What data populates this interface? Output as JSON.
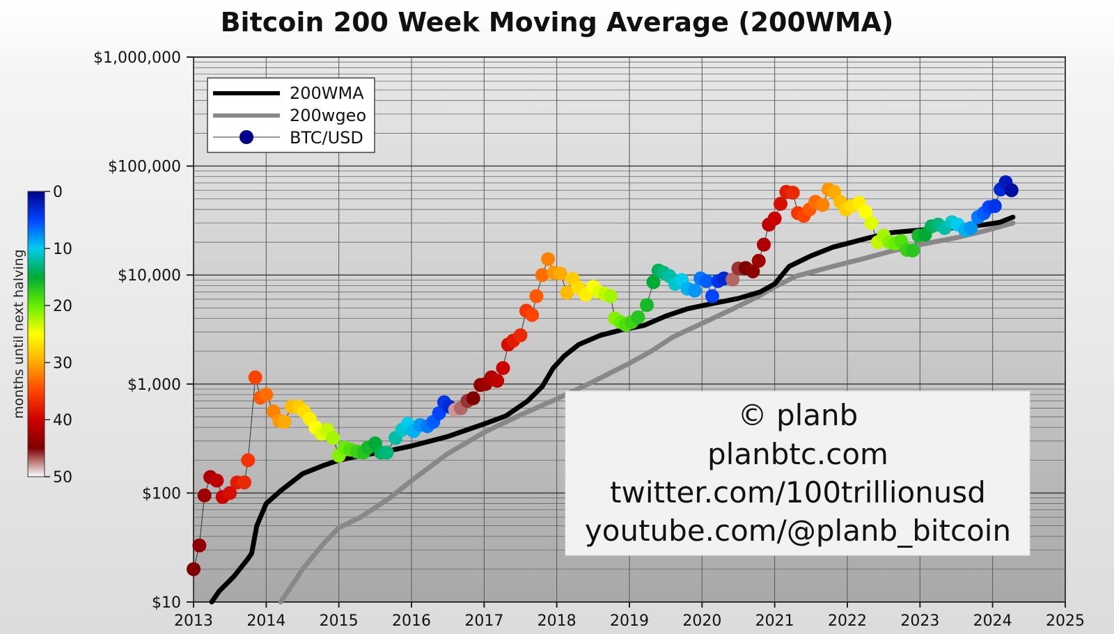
{
  "chart_data": {
    "type": "scatter",
    "title": "Bitcoin 200 Week Moving Average (200WMA)",
    "xlabel": "",
    "ylabel": "",
    "y_scale": "log",
    "xlim": [
      2013,
      2025
    ],
    "ylim": [
      10,
      1000000
    ],
    "x_ticks": [
      "2013",
      "2014",
      "2015",
      "2016",
      "2017",
      "2018",
      "2019",
      "2020",
      "2021",
      "2022",
      "2023",
      "2024",
      "2025"
    ],
    "y_ticks": [
      "$10",
      "$100",
      "$1,000",
      "$10,000",
      "$100,000",
      "$1,000,000"
    ],
    "grid": true,
    "legend": {
      "position": "top-left",
      "entries": [
        {
          "label": "200WMA",
          "color": "#000000",
          "style": "line"
        },
        {
          "label": "200wgeo",
          "color": "#888888",
          "style": "line"
        },
        {
          "label": "BTC/USD",
          "color": "#00008b",
          "style": "marker"
        }
      ]
    },
    "colorbar": {
      "label": "months until next halving",
      "ticks": [
        "0",
        "10",
        "20",
        "30",
        "40",
        "50"
      ],
      "colors": [
        "#00008b",
        "#0044ff",
        "#00ccee",
        "#00aa33",
        "#66ee00",
        "#ffff00",
        "#ffaa00",
        "#ff4400",
        "#cc0000",
        "#800000",
        "#ffffff"
      ]
    },
    "annotation": [
      "© planb",
      "planbtc.com",
      "twitter.com/100trillionusd",
      "youtube.com/@planb_bitcoin"
    ],
    "series": [
      {
        "name": "200WMA",
        "color": "#000000",
        "points": [
          [
            2013.25,
            10
          ],
          [
            2013.35,
            12.5
          ],
          [
            2013.55,
            17
          ],
          [
            2013.75,
            25
          ],
          [
            2013.8,
            28
          ],
          [
            2013.87,
            50
          ],
          [
            2014.0,
            80
          ],
          [
            2014.2,
            105
          ],
          [
            2014.5,
            150
          ],
          [
            2014.8,
            180
          ],
          [
            2015.0,
            200
          ],
          [
            2015.3,
            220
          ],
          [
            2015.7,
            245
          ],
          [
            2016.0,
            270
          ],
          [
            2016.5,
            330
          ],
          [
            2017.0,
            430
          ],
          [
            2017.3,
            510
          ],
          [
            2017.6,
            700
          ],
          [
            2017.8,
            950
          ],
          [
            2017.95,
            1400
          ],
          [
            2018.1,
            1800
          ],
          [
            2018.3,
            2300
          ],
          [
            2018.6,
            2800
          ],
          [
            2018.9,
            3150
          ],
          [
            2019.2,
            3450
          ],
          [
            2019.5,
            4200
          ],
          [
            2019.8,
            4900
          ],
          [
            2020.1,
            5400
          ],
          [
            2020.5,
            6100
          ],
          [
            2020.8,
            7000
          ],
          [
            2021.0,
            8300
          ],
          [
            2021.2,
            12000
          ],
          [
            2021.5,
            15000
          ],
          [
            2021.8,
            18000
          ],
          [
            2022.0,
            19500
          ],
          [
            2022.3,
            22000
          ],
          [
            2022.6,
            24500
          ],
          [
            2022.9,
            25500
          ],
          [
            2023.2,
            26500
          ],
          [
            2023.6,
            27500
          ],
          [
            2023.9,
            29000
          ],
          [
            2024.1,
            30500
          ],
          [
            2024.28,
            34000
          ]
        ]
      },
      {
        "name": "200wgeo",
        "color": "#888888",
        "points": [
          [
            2014.2,
            10
          ],
          [
            2014.5,
            20
          ],
          [
            2014.8,
            35
          ],
          [
            2015.0,
            48
          ],
          [
            2015.3,
            60
          ],
          [
            2015.7,
            90
          ],
          [
            2016.0,
            130
          ],
          [
            2016.5,
            230
          ],
          [
            2017.0,
            360
          ],
          [
            2017.5,
            520
          ],
          [
            2018.0,
            730
          ],
          [
            2018.5,
            1050
          ],
          [
            2019.0,
            1550
          ],
          [
            2019.3,
            2000
          ],
          [
            2019.6,
            2700
          ],
          [
            2020.0,
            3600
          ],
          [
            2020.4,
            4800
          ],
          [
            2020.8,
            6500
          ],
          [
            2021.0,
            7800
          ],
          [
            2021.3,
            9800
          ],
          [
            2021.8,
            12000
          ],
          [
            2022.2,
            14000
          ],
          [
            2022.6,
            16500
          ],
          [
            2023.0,
            19000
          ],
          [
            2023.5,
            22000
          ],
          [
            2023.9,
            25500
          ],
          [
            2024.28,
            30000
          ]
        ]
      },
      {
        "name": "BTC/USD",
        "color": "#00008b",
        "points": [
          [
            2013.0,
            20,
            45
          ],
          [
            2013.08,
            33,
            44
          ],
          [
            2013.15,
            95,
            43
          ],
          [
            2013.23,
            140,
            42
          ],
          [
            2013.32,
            130,
            41
          ],
          [
            2013.4,
            92,
            40
          ],
          [
            2013.5,
            100,
            39
          ],
          [
            2013.6,
            125,
            38
          ],
          [
            2013.7,
            125,
            37
          ],
          [
            2013.75,
            200,
            36
          ],
          [
            2013.85,
            1150,
            35
          ],
          [
            2013.92,
            750,
            34
          ],
          [
            2014.0,
            800,
            33
          ],
          [
            2014.1,
            560,
            32
          ],
          [
            2014.18,
            460,
            31
          ],
          [
            2014.25,
            450,
            30
          ],
          [
            2014.35,
            620,
            29
          ],
          [
            2014.45,
            620,
            28
          ],
          [
            2014.52,
            560,
            27
          ],
          [
            2014.6,
            480,
            26
          ],
          [
            2014.68,
            400,
            25
          ],
          [
            2014.76,
            350,
            24
          ],
          [
            2014.84,
            380,
            23
          ],
          [
            2014.92,
            320,
            22
          ],
          [
            2015.0,
            220,
            21
          ],
          [
            2015.08,
            260,
            20
          ],
          [
            2015.16,
            250,
            19
          ],
          [
            2015.25,
            240,
            18
          ],
          [
            2015.34,
            235,
            17
          ],
          [
            2015.4,
            260,
            16
          ],
          [
            2015.5,
            285,
            15
          ],
          [
            2015.58,
            235,
            14
          ],
          [
            2015.66,
            235,
            13
          ],
          [
            2015.78,
            320,
            12
          ],
          [
            2015.87,
            380,
            11
          ],
          [
            2015.95,
            430,
            10
          ],
          [
            2016.03,
            370,
            9
          ],
          [
            2016.12,
            420,
            8
          ],
          [
            2016.22,
            410,
            7
          ],
          [
            2016.3,
            450,
            6
          ],
          [
            2016.38,
            540,
            5
          ],
          [
            2016.45,
            680,
            4
          ],
          [
            2016.52,
            620,
            3
          ],
          [
            2016.6,
            580,
            48
          ],
          [
            2016.68,
            600,
            47
          ],
          [
            2016.77,
            700,
            46
          ],
          [
            2016.85,
            740,
            45
          ],
          [
            2016.95,
            980,
            44
          ],
          [
            2017.02,
            1000,
            43
          ],
          [
            2017.1,
            1150,
            42
          ],
          [
            2017.18,
            1070,
            41
          ],
          [
            2017.26,
            1400,
            40
          ],
          [
            2017.33,
            2300,
            39
          ],
          [
            2017.4,
            2500,
            38
          ],
          [
            2017.5,
            2800,
            37
          ],
          [
            2017.58,
            4700,
            36
          ],
          [
            2017.66,
            4300,
            35
          ],
          [
            2017.72,
            6400,
            34
          ],
          [
            2017.8,
            10000,
            33
          ],
          [
            2017.88,
            14000,
            32
          ],
          [
            2017.96,
            10500,
            31
          ],
          [
            2018.05,
            10300,
            30
          ],
          [
            2018.14,
            6900,
            29
          ],
          [
            2018.22,
            9200,
            28
          ],
          [
            2018.3,
            7600,
            27
          ],
          [
            2018.4,
            6600,
            26
          ],
          [
            2018.5,
            7800,
            25
          ],
          [
            2018.58,
            7000,
            24
          ],
          [
            2018.66,
            6700,
            23
          ],
          [
            2018.74,
            6400,
            22
          ],
          [
            2018.8,
            4000,
            21
          ],
          [
            2018.88,
            3700,
            20
          ],
          [
            2018.95,
            3500,
            19
          ],
          [
            2019.03,
            3700,
            18
          ],
          [
            2019.12,
            4100,
            17
          ],
          [
            2019.24,
            5300,
            16
          ],
          [
            2019.33,
            8600,
            15
          ],
          [
            2019.4,
            11000,
            14
          ],
          [
            2019.47,
            10500,
            13
          ],
          [
            2019.55,
            9800,
            12
          ],
          [
            2019.63,
            8300,
            11
          ],
          [
            2019.72,
            9000,
            10
          ],
          [
            2019.8,
            7500,
            9
          ],
          [
            2019.9,
            7200,
            8
          ],
          [
            2019.98,
            9300,
            7
          ],
          [
            2020.06,
            8800,
            6
          ],
          [
            2020.14,
            6400,
            5
          ],
          [
            2020.22,
            8800,
            4
          ],
          [
            2020.3,
            9300,
            3
          ],
          [
            2020.42,
            9100,
            47
          ],
          [
            2020.5,
            11500,
            46
          ],
          [
            2020.6,
            11600,
            45
          ],
          [
            2020.7,
            10800,
            44
          ],
          [
            2020.78,
            13500,
            43
          ],
          [
            2020.85,
            19000,
            42
          ],
          [
            2020.92,
            29000,
            41
          ],
          [
            2021.0,
            33000,
            40
          ],
          [
            2021.08,
            45000,
            39
          ],
          [
            2021.16,
            58000,
            38
          ],
          [
            2021.25,
            57000,
            37
          ],
          [
            2021.32,
            37000,
            36
          ],
          [
            2021.4,
            35000,
            35
          ],
          [
            2021.48,
            40000,
            34
          ],
          [
            2021.56,
            47000,
            33
          ],
          [
            2021.66,
            44000,
            32
          ],
          [
            2021.74,
            61000,
            31
          ],
          [
            2021.82,
            58000,
            30
          ],
          [
            2021.9,
            47000,
            29
          ],
          [
            2021.98,
            40000,
            28
          ],
          [
            2022.06,
            43000,
            27
          ],
          [
            2022.16,
            46000,
            26
          ],
          [
            2022.25,
            38000,
            25
          ],
          [
            2022.33,
            30000,
            24
          ],
          [
            2022.42,
            20000,
            23
          ],
          [
            2022.5,
            23000,
            22
          ],
          [
            2022.58,
            20000,
            21
          ],
          [
            2022.66,
            19500,
            20
          ],
          [
            2022.74,
            20500,
            19
          ],
          [
            2022.82,
            17000,
            18
          ],
          [
            2022.9,
            16800,
            17
          ],
          [
            2022.98,
            23000,
            16
          ],
          [
            2023.07,
            23500,
            15
          ],
          [
            2023.16,
            28000,
            14
          ],
          [
            2023.25,
            29000,
            13
          ],
          [
            2023.34,
            27000,
            12
          ],
          [
            2023.44,
            30500,
            11
          ],
          [
            2023.52,
            29000,
            10
          ],
          [
            2023.62,
            26000,
            9
          ],
          [
            2023.7,
            27000,
            8
          ],
          [
            2023.8,
            34000,
            7
          ],
          [
            2023.88,
            37000,
            6
          ],
          [
            2023.95,
            42000,
            5
          ],
          [
            2024.03,
            43000,
            4
          ],
          [
            2024.11,
            61000,
            3
          ],
          [
            2024.18,
            71000,
            2
          ],
          [
            2024.26,
            60000,
            1
          ]
        ]
      }
    ]
  }
}
